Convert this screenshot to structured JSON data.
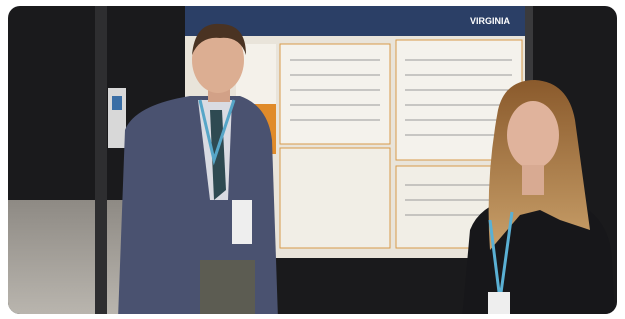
{
  "photo": {
    "poster_logo": "VIRGINIA"
  }
}
